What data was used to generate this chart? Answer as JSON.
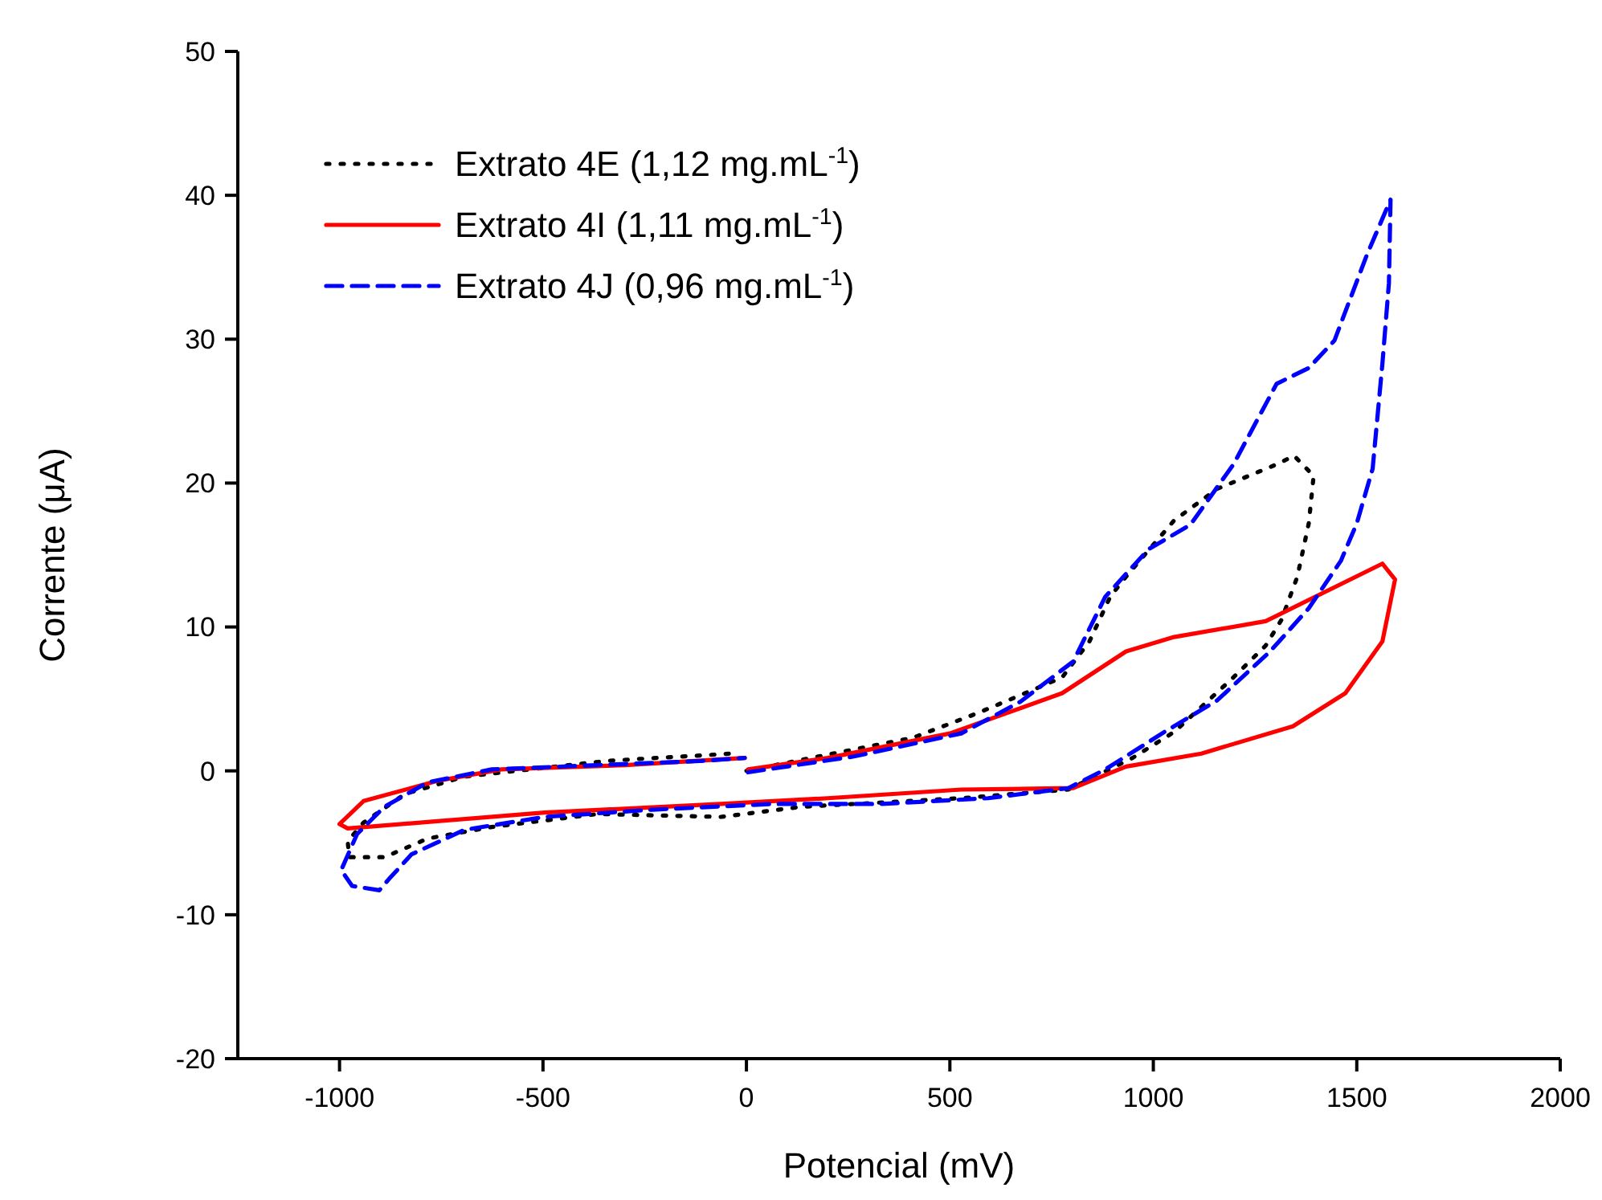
{
  "chart_data": {
    "type": "line",
    "xlabel": "Potencial (mV)",
    "ylabel": "Corrente (μA)",
    "xlim": [
      -1250,
      2000
    ],
    "ylim": [
      -20,
      50
    ],
    "xticks": [
      -1000,
      -500,
      0,
      500,
      1000,
      1500,
      2000
    ],
    "yticks": [
      -20,
      -10,
      0,
      10,
      20,
      30,
      40,
      50
    ],
    "legend": "top left",
    "series": [
      {
        "name": "Extrato 4E (1,12 mg.mL$^{-1}$)",
        "color": "#000000",
        "line_style": "dotted",
        "x": [
          0,
          409,
          567,
          685,
          776,
          843,
          894,
          933,
          1051,
          1157,
          1303,
          1346,
          1394,
          1382,
          1354,
          1315,
          1276,
          1197,
          1051,
          949,
          791,
          528,
          134,
          -63,
          -366,
          -626,
          -783,
          -890,
          -976,
          -980,
          -941,
          -839,
          -693,
          -339,
          -35
        ],
        "values": [
          0,
          2.3,
          4.0,
          5.4,
          6.5,
          9.0,
          12.1,
          13.5,
          17.4,
          19.6,
          21.3,
          21.9,
          20.5,
          17.2,
          13.5,
          10.5,
          8.7,
          6.5,
          2.7,
          0.9,
          -1.3,
          -1.9,
          -2.5,
          -3.2,
          -3.0,
          -3.9,
          -4.7,
          -6.0,
          -6.0,
          -4.9,
          -3.6,
          -1.6,
          -0.4,
          0.7,
          1.2
        ]
      },
      {
        "name": "Extrato 4I (1,11 mg.mL$^{-1}$)",
        "color": "#ff0000",
        "line_style": "solid",
        "x": [
          4,
          200,
          500,
          776,
          933,
          1051,
          1276,
          1563,
          1594,
          1563,
          1472,
          1343,
          1118,
          933,
          803,
          528,
          200,
          -63,
          -496,
          -760,
          -980,
          -1000,
          -941,
          -760,
          -602,
          -299,
          -4
        ],
        "values": [
          0.1,
          0.9,
          2.6,
          5.4,
          8.3,
          9.3,
          10.4,
          14.4,
          13.3,
          9.0,
          5.4,
          3.1,
          1.2,
          0.3,
          -1.2,
          -1.3,
          -1.9,
          -2.3,
          -2.9,
          -3.5,
          -4.0,
          -3.7,
          -2.1,
          -0.7,
          0.1,
          0.4,
          0.9
        ]
      },
      {
        "name": "Extrato 4J (0,96 mg.mL$^{-1}$)",
        "color": "#0000ff",
        "line_style": "dashed",
        "x": [
          4,
          264,
          528,
          673,
          803,
          882,
          988,
          1091,
          1197,
          1303,
          1382,
          1445,
          1524,
          1583,
          1579,
          1563,
          1539,
          1500,
          1461,
          1382,
          1287,
          1157,
          1027,
          882,
          791,
          594,
          331,
          67,
          -232,
          -496,
          -693,
          -823,
          -878,
          -902,
          -969,
          -996,
          -957,
          -890,
          -783,
          -626,
          -366,
          -102,
          -4
        ],
        "values": [
          -0.1,
          1.0,
          2.6,
          4.8,
          7.6,
          12.1,
          15.4,
          17.1,
          21.3,
          26.9,
          28.0,
          29.9,
          35.8,
          39.7,
          33.9,
          28.3,
          21.0,
          17.2,
          14.6,
          11.3,
          8.3,
          4.9,
          2.7,
          0.1,
          -1.2,
          -1.9,
          -2.3,
          -2.3,
          -2.7,
          -3.2,
          -4.1,
          -5.8,
          -7.5,
          -8.3,
          -8.0,
          -6.9,
          -4.4,
          -2.5,
          -0.8,
          0.1,
          0.4,
          0.7,
          0.9
        ]
      }
    ]
  }
}
